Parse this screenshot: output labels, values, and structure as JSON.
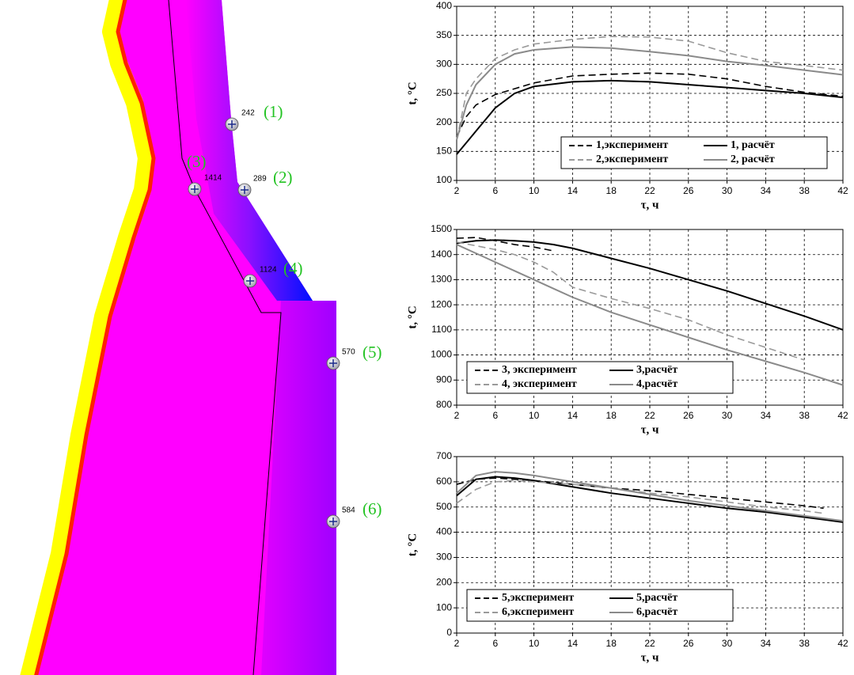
{
  "field": {
    "points": [
      {
        "value": 242,
        "label": "(1)"
      },
      {
        "value": 289,
        "label": "(2)"
      },
      {
        "value": 1414,
        "label": "(3)"
      },
      {
        "value": 1124,
        "label": "(4)"
      },
      {
        "value": 570,
        "label": "(5)"
      },
      {
        "value": 584,
        "label": "(6)"
      }
    ]
  },
  "chart_data": [
    {
      "type": "line",
      "ylabel": "t, °C",
      "xlabel": "τ, ч",
      "grid": true,
      "legend": "lower right",
      "x": [
        2,
        3,
        4,
        6,
        8,
        10,
        14,
        18,
        22,
        26,
        30,
        34,
        38,
        42
      ],
      "xlim": [
        2,
        42
      ],
      "xticks": [
        2,
        6,
        10,
        14,
        18,
        22,
        26,
        30,
        34,
        38,
        42
      ],
      "ylim": [
        100,
        400
      ],
      "yticks": [
        100,
        150,
        200,
        250,
        300,
        350,
        400
      ],
      "series": [
        {
          "name": "1,эксперимент",
          "color": "#000000",
          "style": "dashed",
          "values": [
            175,
            210,
            230,
            248,
            258,
            268,
            280,
            283,
            285,
            283,
            275,
            262,
            252,
            245
          ]
        },
        {
          "name": "1, расчёт",
          "color": "#000000",
          "style": "solid",
          "values": [
            145,
            165,
            185,
            225,
            250,
            262,
            270,
            272,
            270,
            265,
            260,
            255,
            250,
            243
          ]
        },
        {
          "name": "2,эксперимент",
          "color": "#9a9a9a",
          "style": "dashed",
          "values": [
            170,
            250,
            275,
            310,
            325,
            335,
            343,
            348,
            347,
            340,
            320,
            305,
            298,
            290
          ]
        },
        {
          "name": "2, расчёт",
          "color": "#8a8a8a",
          "style": "solid",
          "values": [
            170,
            230,
            265,
            300,
            318,
            325,
            330,
            328,
            322,
            315,
            305,
            298,
            290,
            282
          ]
        }
      ]
    },
    {
      "type": "line",
      "ylabel": "t, °C",
      "xlabel": "τ, ч",
      "grid": true,
      "legend": "lower left",
      "x": [
        2,
        4,
        6,
        8,
        10,
        12,
        14,
        18,
        22,
        26,
        30,
        34,
        38,
        42
      ],
      "xlim": [
        2,
        42
      ],
      "xticks": [
        2,
        6,
        10,
        14,
        18,
        22,
        26,
        30,
        34,
        38,
        42
      ],
      "ylim": [
        800,
        1500
      ],
      "yticks": [
        800,
        900,
        1000,
        1100,
        1200,
        1300,
        1400,
        1500
      ],
      "series": [
        {
          "name": "3, эксперимент",
          "color": "#000000",
          "style": "dashed",
          "values": [
            1465,
            1468,
            1455,
            1440,
            1430,
            1415,
            null,
            null,
            null,
            null,
            null,
            null,
            null,
            null
          ]
        },
        {
          "name": "3,расчёт",
          "color": "#000000",
          "style": "solid",
          "values": [
            1445,
            1455,
            1458,
            1455,
            1450,
            1440,
            1425,
            1385,
            1345,
            1300,
            1255,
            1205,
            1155,
            1100
          ]
        },
        {
          "name": "4, эксперимент",
          "color": "#9a9a9a",
          "style": "dashed",
          "values": [
            1450,
            1435,
            1420,
            1400,
            1370,
            1330,
            1270,
            1225,
            1185,
            1140,
            1080,
            1030,
            980,
            null
          ]
        },
        {
          "name": "4,расчёт",
          "color": "#8a8a8a",
          "style": "solid",
          "values": [
            1440,
            1405,
            1370,
            1335,
            1300,
            1265,
            1230,
            1170,
            1120,
            1070,
            1020,
            975,
            930,
            880
          ]
        }
      ]
    },
    {
      "type": "line",
      "ylabel": "t, °C",
      "xlabel": "τ, ч",
      "grid": true,
      "legend": "lower left",
      "x": [
        2,
        4,
        6,
        8,
        10,
        14,
        18,
        22,
        26,
        30,
        34,
        38,
        40,
        42
      ],
      "xlim": [
        2,
        42
      ],
      "xticks": [
        2,
        6,
        10,
        14,
        18,
        22,
        26,
        30,
        34,
        38,
        42
      ],
      "ylim": [
        0,
        700
      ],
      "yticks": [
        0,
        100,
        200,
        300,
        400,
        500,
        600,
        700
      ],
      "series": [
        {
          "name": "5,эксперимент",
          "color": "#000000",
          "style": "dashed",
          "values": [
            590,
            610,
            615,
            610,
            605,
            590,
            575,
            565,
            550,
            535,
            520,
            505,
            495,
            null
          ]
        },
        {
          "name": "5,расчёт",
          "color": "#000000",
          "style": "solid",
          "values": [
            545,
            610,
            620,
            615,
            605,
            580,
            555,
            535,
            515,
            495,
            480,
            460,
            450,
            440
          ]
        },
        {
          "name": "6,эксперимент",
          "color": "#9a9a9a",
          "style": "dashed",
          "values": [
            515,
            570,
            600,
            605,
            600,
            590,
            575,
            555,
            540,
            520,
            500,
            485,
            475,
            null
          ]
        },
        {
          "name": "6,расчёт",
          "color": "#8a8a8a",
          "style": "solid",
          "values": [
            555,
            625,
            640,
            635,
            625,
            600,
            575,
            550,
            525,
            505,
            485,
            465,
            455,
            445
          ]
        }
      ]
    }
  ]
}
